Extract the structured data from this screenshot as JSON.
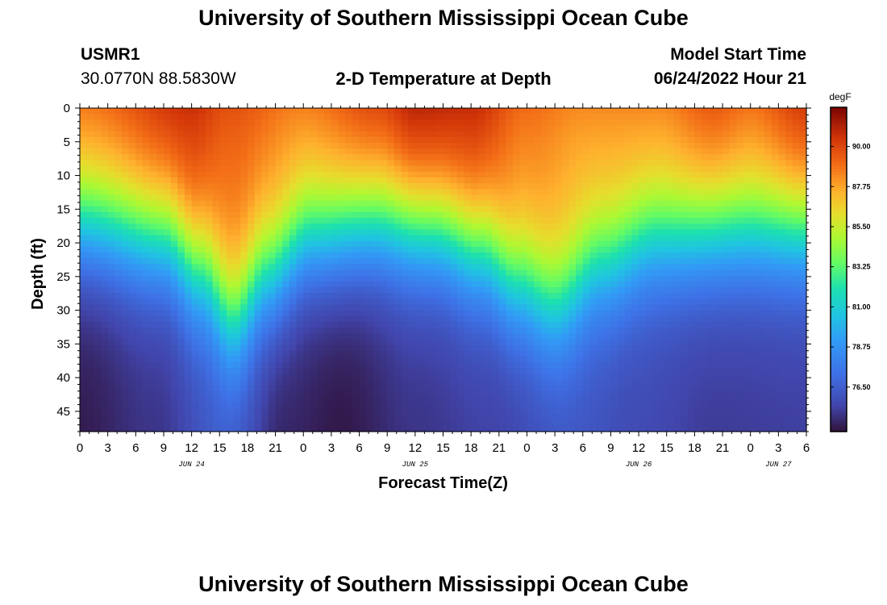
{
  "page": {
    "title": "University of Southern Mississippi Ocean Cube",
    "footer_title": "University of Southern Mississippi Ocean Cube"
  },
  "header": {
    "station": "USMR1",
    "coords": "30.0770N  88.5830W",
    "plot_title": "2-D Temperature at Depth",
    "model_label": "Model Start Time",
    "model_time": "06/24/2022 Hour 21"
  },
  "chart_data": {
    "type": "heatmap",
    "title": "2-D Temperature at Depth",
    "xlabel": "Forecast Time(Z)",
    "ylabel": "Depth (ft)",
    "x_hours_range": [
      0,
      78
    ],
    "x_tick_labels": [
      "0",
      "3",
      "6",
      "9",
      "12",
      "15",
      "18",
      "21",
      "0",
      "3",
      "6",
      "9",
      "12",
      "15",
      "18",
      "21",
      "0",
      "3",
      "6",
      "9",
      "12",
      "15",
      "18",
      "21",
      "0",
      "3",
      "6"
    ],
    "date_labels": [
      {
        "text": "JUN 24",
        "hour": 12
      },
      {
        "text": "JUN 25",
        "hour": 36
      },
      {
        "text": "JUN 26",
        "hour": 60
      },
      {
        "text": "JUN 27",
        "hour": 75
      }
    ],
    "y_range": [
      0,
      48
    ],
    "y_ticks": [
      0,
      5,
      10,
      15,
      20,
      25,
      30,
      35,
      40,
      45
    ],
    "units": "degF",
    "colorbar_range": [
      74.0,
      92.2
    ],
    "colorbar_ticks": [
      "76.50",
      "78.75",
      "81.00",
      "83.25",
      "85.50",
      "87.75",
      "90.00"
    ],
    "colorbar_tick_values": [
      76.5,
      78.75,
      81.0,
      83.25,
      85.5,
      87.75,
      90.0
    ],
    "surface_temp_profile": {
      "hours": [
        0,
        12,
        16,
        24,
        32,
        36,
        42,
        48,
        54,
        62,
        68,
        72,
        78
      ],
      "degF": [
        88.6,
        90.6,
        89.7,
        88.5,
        89.8,
        90.9,
        90.7,
        89.0,
        88.3,
        88.3,
        89.4,
        88.8,
        90.2
      ]
    },
    "thermocline_depth_ft": {
      "hours": [
        0,
        9,
        13,
        16.5,
        20,
        25,
        32,
        38,
        43,
        47,
        51,
        56,
        62,
        70,
        78
      ],
      "depth": [
        17,
        19,
        24,
        31,
        25,
        19,
        17,
        18,
        21,
        26,
        29,
        23,
        19,
        18,
        18
      ]
    },
    "bottom_temp_profile": {
      "hours": [
        0,
        8,
        16,
        22,
        28,
        36,
        44,
        52,
        60,
        68,
        78
      ],
      "degF": [
        74.3,
        75.0,
        76.6,
        74.6,
        74.2,
        75.0,
        75.4,
        76.3,
        75.7,
        75.2,
        75.3
      ]
    }
  }
}
